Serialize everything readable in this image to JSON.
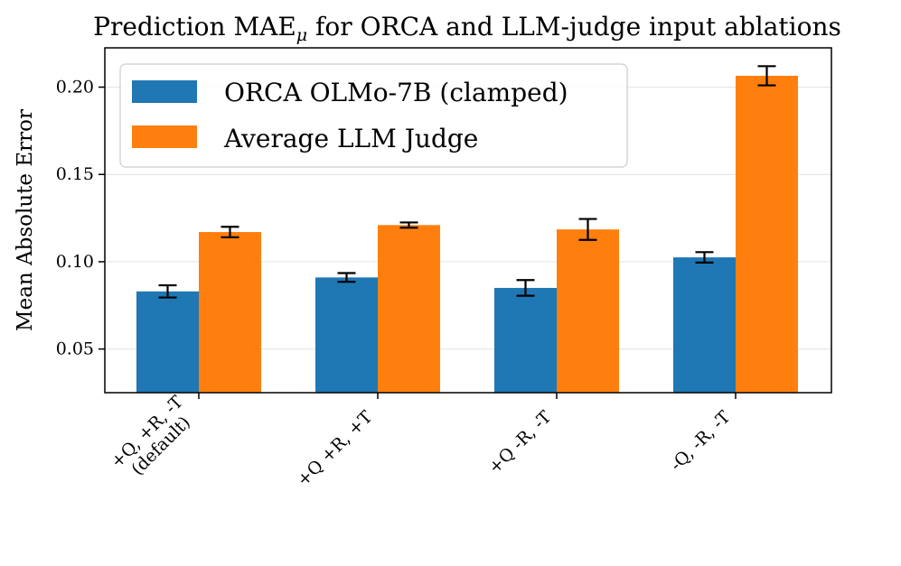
{
  "chart_data": {
    "type": "bar",
    "title": "Prediction MAE",
    "title_subscript": "μ",
    "title_suffix": " for ORCA and LLM-judge input ablations",
    "xlabel": "",
    "ylabel": "Mean Absolute Error",
    "ylim": [
      0.025,
      0.2225
    ],
    "yticks": [
      0.05,
      0.1,
      0.15,
      0.2
    ],
    "ytick_labels": [
      "0.05",
      "0.10",
      "0.15",
      "0.20"
    ],
    "grid": "horizontal",
    "legend_position": "top-left",
    "categories": [
      [
        "+Q, +R, -T",
        "(default)"
      ],
      [
        "+Q +R, +T"
      ],
      [
        "+Q -R, -T"
      ],
      [
        "-Q, -R, -T"
      ]
    ],
    "series": [
      {
        "name": "ORCA OLMo-7B (clamped)",
        "color": "#1f77b4",
        "values": [
          0.083,
          0.091,
          0.085,
          0.1025
        ],
        "errors": [
          0.0035,
          0.0025,
          0.0045,
          0.003
        ]
      },
      {
        "name": "Average LLM Judge",
        "color": "#ff7f0e",
        "values": [
          0.117,
          0.121,
          0.1185,
          0.2065
        ],
        "errors": [
          0.003,
          0.0015,
          0.006,
          0.0055
        ]
      }
    ]
  }
}
